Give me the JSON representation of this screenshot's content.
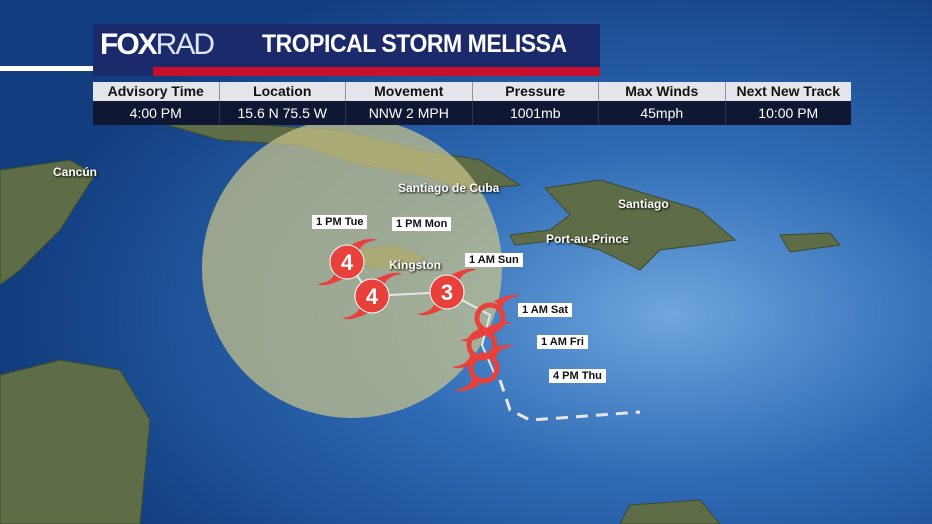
{
  "header": {
    "logo": {
      "fox": "FOX",
      "rad": "RAD"
    },
    "title": "TROPICAL STORM MELISSA"
  },
  "info_table": {
    "columns": [
      "Advisory Time",
      "Location",
      "Movement",
      "Pressure",
      "Max Winds",
      "Next New Track"
    ],
    "values": [
      "4:00 PM",
      "15.6 N 75.5 W",
      "NNW 2 MPH",
      "1001mb",
      "45mph",
      "10:00 PM"
    ]
  },
  "cities": [
    "Cancún",
    "Santiago de Cuba",
    "Santiago",
    "Port-au-Prince",
    "Kingston"
  ],
  "track_points": [
    {
      "time": "4 PM Thu",
      "category": "TS"
    },
    {
      "time": "1 AM Fri",
      "category": "TS"
    },
    {
      "time": "1 AM Sat",
      "category": "TS"
    },
    {
      "time": "1 AM Sun",
      "category": "3"
    },
    {
      "time": "1 PM Mon",
      "category": "4"
    },
    {
      "time": "1 PM Tue",
      "category": "4"
    }
  ],
  "colors": {
    "storm": "#e8413c",
    "cone": "#c9c48a",
    "ocean": "#1d4f95",
    "land": "#5b6b45",
    "header_bg": "#1b2a6b",
    "header_accent": "#c8102e"
  }
}
